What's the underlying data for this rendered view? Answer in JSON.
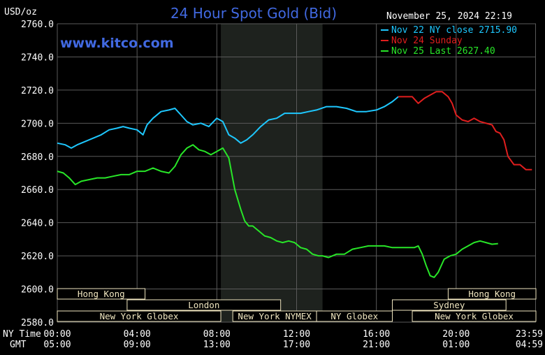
{
  "title": "24 Hour Spot Gold (Bid)",
  "unit": "USD/oz",
  "watermark": "www.kitco.com",
  "timestamp": "November 25, 2024 22:19",
  "colors": {
    "background": "#000000",
    "grid": "#5a5a5a",
    "axis_text": "#ffffff",
    "title": "#4169e1",
    "watermark": "#4169e1",
    "session_shade": "#1e221e",
    "session_box_fill": "#f0e6c0",
    "session_box_text": "#000000"
  },
  "legend": [
    {
      "label": "Nov 22 NY close 2715.90",
      "color": "#1ec8ff"
    },
    {
      "label": "Nov 24 Sunday",
      "color": "#e01e1e"
    },
    {
      "label": "Nov 25 Last 2627.40",
      "color": "#28e628"
    }
  ],
  "time_axis": {
    "row_labels": [
      "NY Time",
      "GMT"
    ],
    "ny": [
      "00:00",
      "04:00",
      "08:00",
      "12:00",
      "16:00",
      "20:00",
      "23:59"
    ],
    "gmt": [
      "05:00",
      "09:00",
      "13:00",
      "17:00",
      "21:00",
      "01:00",
      "04:59"
    ]
  },
  "sessions": [
    {
      "label": "Hong Kong",
      "start": 0,
      "end": 4.4,
      "row": 0
    },
    {
      "label": "Hong Kong",
      "start": 19.6,
      "end": 24,
      "row": 0
    },
    {
      "label": "London",
      "start": 3.5,
      "end": 11.2,
      "row": 1
    },
    {
      "label": "Sydney",
      "start": 16.8,
      "end": 22.5,
      "row": 1
    },
    {
      "label": "New York Globex",
      "start": 0,
      "end": 8.2,
      "row": 2
    },
    {
      "label": "New York NYMEX",
      "start": 8.8,
      "end": 13.0,
      "row": 2
    },
    {
      "label": "NY Globex",
      "start": 13.0,
      "end": 16.8,
      "row": 2
    },
    {
      "label": "New York Globex",
      "start": 17.8,
      "end": 24,
      "row": 2
    }
  ],
  "chart_data": {
    "type": "line",
    "title": "24 Hour Spot Gold (Bid)",
    "ylabel": "USD/oz",
    "xlabel": "NY Time",
    "xlim": [
      0,
      24
    ],
    "ylim": [
      2580,
      2760
    ],
    "y_ticks": [
      2580.0,
      2600.0,
      2620.0,
      2640.0,
      2660.0,
      2680.0,
      2700.0,
      2720.0,
      2740.0,
      2760.0
    ],
    "x_tick_labels": [
      "00:00",
      "04:00",
      "08:00",
      "12:00",
      "16:00",
      "20:00",
      "23:59"
    ],
    "x_tick_hours": [
      0,
      4,
      8,
      12,
      16,
      20,
      23.983
    ],
    "shaded_region_hours": [
      8.2,
      13.3
    ],
    "grid": true,
    "legend_position": "top-right",
    "series": [
      {
        "name": "Nov 22 NY close 2715.90",
        "color": "#1ec8ff",
        "x": [
          0,
          0.4,
          0.7,
          1.0,
          1.4,
          1.8,
          2.2,
          2.6,
          3.0,
          3.3,
          3.6,
          4.0,
          4.3,
          4.5,
          4.8,
          5.2,
          5.6,
          5.9,
          6.2,
          6.5,
          6.8,
          7.2,
          7.6,
          8.0,
          8.3,
          8.6,
          8.9,
          9.2,
          9.5,
          9.8,
          10.2,
          10.6,
          11.0,
          11.4,
          11.8,
          12.2,
          12.6,
          13.0,
          13.5,
          14.0,
          14.5,
          15.0,
          15.5,
          16.0,
          16.4,
          16.8,
          17.1
        ],
        "y": [
          2688,
          2687,
          2685,
          2687,
          2689,
          2691,
          2693,
          2696,
          2697,
          2698,
          2697,
          2696,
          2693,
          2699,
          2703,
          2707,
          2708,
          2709,
          2705,
          2701,
          2699,
          2700,
          2698,
          2703,
          2701,
          2693,
          2691,
          2688,
          2690,
          2693,
          2698,
          2702,
          2703,
          2706,
          2706,
          2706,
          2707,
          2708,
          2710,
          2710,
          2709,
          2707,
          2707,
          2708,
          2710,
          2713,
          2716
        ]
      },
      {
        "name": "Nov 24 Sunday",
        "color": "#e01e1e",
        "x": [
          17.1,
          17.5,
          17.8,
          18.1,
          18.4,
          18.7,
          19.0,
          19.3,
          19.6,
          19.8,
          20.0,
          20.3,
          20.6,
          20.9,
          21.2,
          21.5,
          21.8,
          22.0,
          22.2,
          22.4,
          22.6,
          22.9,
          23.2,
          23.5,
          23.8
        ],
        "y": [
          2716,
          2716,
          2716,
          2712,
          2715,
          2717,
          2719,
          2719,
          2716,
          2712,
          2705,
          2702,
          2701,
          2703,
          2701,
          2700,
          2699,
          2695,
          2694,
          2690,
          2680,
          2675,
          2675,
          2672,
          2672
        ]
      },
      {
        "name": "Nov 25 Last 2627.40",
        "color": "#28e628",
        "x": [
          0,
          0.3,
          0.6,
          0.9,
          1.2,
          1.6,
          2.0,
          2.4,
          2.8,
          3.2,
          3.6,
          4.0,
          4.4,
          4.8,
          5.2,
          5.6,
          5.9,
          6.2,
          6.5,
          6.8,
          7.1,
          7.4,
          7.7,
          8.0,
          8.3,
          8.6,
          8.9,
          9.2,
          9.4,
          9.6,
          9.8,
          10.1,
          10.4,
          10.7,
          11.0,
          11.3,
          11.6,
          11.9,
          12.2,
          12.5,
          12.8,
          13.1,
          13.3,
          13.6,
          14.0,
          14.4,
          14.8,
          15.2,
          15.6,
          16.0,
          16.4,
          16.8,
          17.2,
          17.6,
          17.9,
          18.1,
          18.3,
          18.5,
          18.7,
          18.9,
          19.1,
          19.4,
          19.7,
          20.0,
          20.3,
          20.6,
          20.9,
          21.2,
          21.5,
          21.8,
          22.1
        ],
        "y": [
          2671,
          2670,
          2667,
          2663,
          2665,
          2666,
          2667,
          2667,
          2668,
          2669,
          2669,
          2671,
          2671,
          2673,
          2671,
          2670,
          2674,
          2681,
          2685,
          2687,
          2684,
          2683,
          2681,
          2683,
          2685,
          2679,
          2660,
          2648,
          2641,
          2638,
          2638,
          2635,
          2632,
          2631,
          2629,
          2628,
          2629,
          2628,
          2625,
          2624,
          2621,
          2620,
          2620,
          2619,
          2621,
          2621,
          2624,
          2625,
          2626,
          2626,
          2626,
          2625,
          2625,
          2625,
          2625,
          2626,
          2621,
          2614,
          2608,
          2607,
          2610,
          2618,
          2620,
          2621,
          2624,
          2626,
          2628,
          2629,
          2628,
          2627,
          2627.4
        ]
      }
    ]
  }
}
